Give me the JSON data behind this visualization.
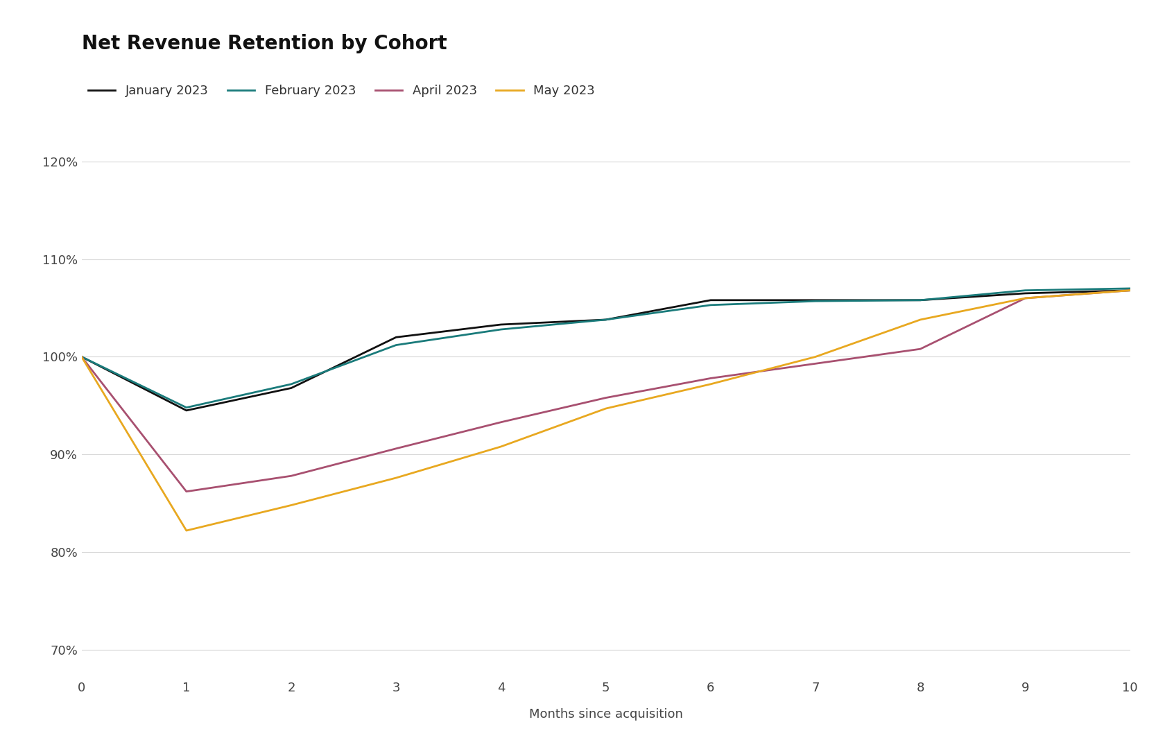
{
  "title": "Net Revenue Retention by Cohort",
  "xlabel": "Months since acquisition",
  "background_color": "#ffffff",
  "grid_color": "#d8d8d8",
  "title_fontsize": 20,
  "label_fontsize": 13,
  "tick_fontsize": 13,
  "legend_fontsize": 13,
  "xlim": [
    0,
    10
  ],
  "ylim": [
    0.675,
    1.235
  ],
  "yticks": [
    0.7,
    0.8,
    0.9,
    1.0,
    1.1,
    1.2
  ],
  "xticks": [
    0,
    1,
    2,
    3,
    4,
    5,
    6,
    7,
    8,
    9,
    10
  ],
  "series": [
    {
      "label": "January 2023",
      "color": "#111111",
      "linewidth": 2.0,
      "x": [
        0,
        1,
        2,
        3,
        4,
        5,
        6,
        7,
        8,
        9,
        10
      ],
      "y": [
        1.0,
        0.945,
        0.968,
        1.02,
        1.033,
        1.038,
        1.058,
        1.058,
        1.058,
        1.065,
        1.068
      ]
    },
    {
      "label": "February 2023",
      "color": "#1a7b7b",
      "linewidth": 2.0,
      "x": [
        0,
        1,
        2,
        3,
        4,
        5,
        6,
        7,
        8,
        9,
        10
      ],
      "y": [
        1.0,
        0.948,
        0.972,
        1.012,
        1.028,
        1.038,
        1.053,
        1.057,
        1.058,
        1.068,
        1.07
      ]
    },
    {
      "label": "April 2023",
      "color": "#a85070",
      "linewidth": 2.0,
      "x": [
        0,
        1,
        2,
        3,
        4,
        5,
        6,
        7,
        8,
        9,
        10
      ],
      "y": [
        1.0,
        0.862,
        0.878,
        0.906,
        0.933,
        0.958,
        0.978,
        0.993,
        1.008,
        1.06,
        1.068
      ]
    },
    {
      "label": "May 2023",
      "color": "#e8a820",
      "linewidth": 2.0,
      "x": [
        0,
        1,
        2,
        3,
        4,
        5,
        6,
        7,
        8,
        9,
        10
      ],
      "y": [
        1.0,
        0.822,
        0.848,
        0.876,
        0.908,
        0.947,
        0.972,
        1.0,
        1.038,
        1.06,
        1.068
      ]
    }
  ]
}
